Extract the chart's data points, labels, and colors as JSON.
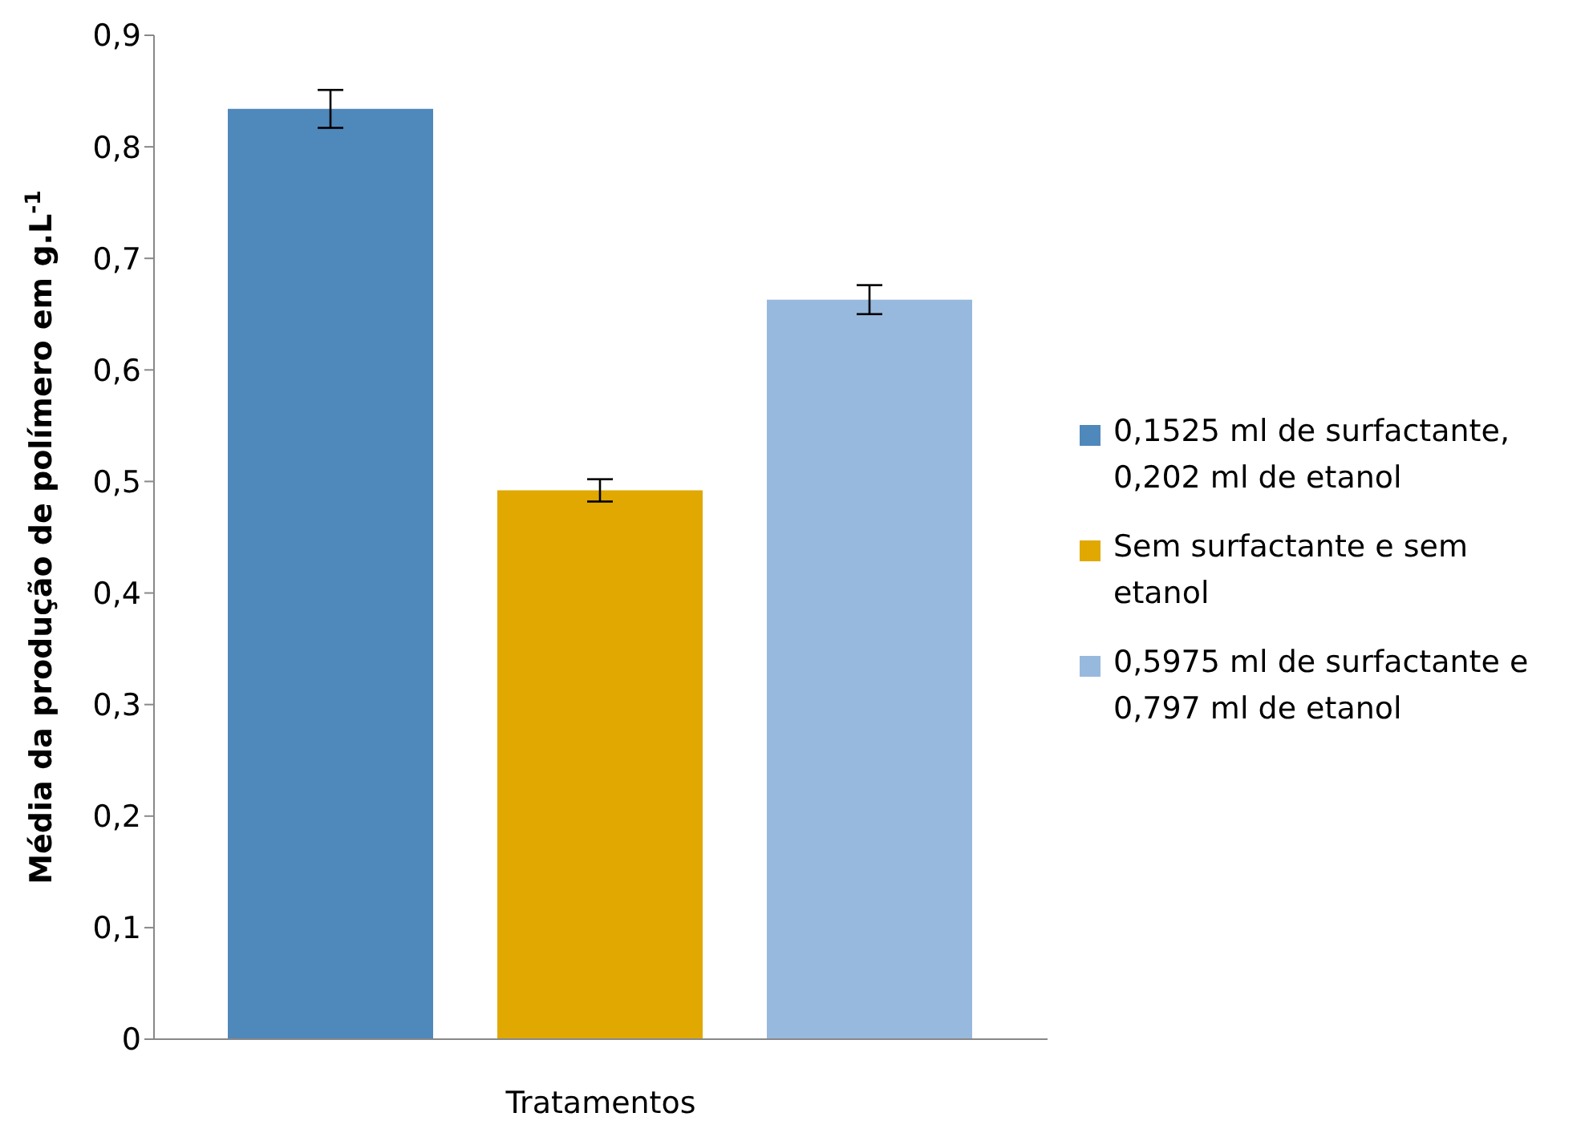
{
  "chart_data": {
    "type": "bar",
    "xlabel": "Tratamentos",
    "ylabel": "Média da produção de polímero em g.L$^{-1}$",
    "categories": [
      null
    ],
    "series": [
      {
        "name": "0,1525 ml de surfactante, 0,202 ml de etanol",
        "color": "#4f88bb",
        "values": [
          0.834
        ],
        "errors": [
          0.017
        ]
      },
      {
        "name": "Sem surfactante e sem etanol",
        "color": "#e0a800",
        "values": [
          0.492
        ],
        "errors": [
          0.01
        ]
      },
      {
        "name": "0,5975 ml de surfactante e 0,797 ml de etanol",
        "color": "#98b9de",
        "values": [
          0.663
        ],
        "errors": [
          0.013
        ]
      }
    ],
    "ylim": [
      0,
      0.9
    ],
    "yticks": [
      0,
      {
        "value": 0.1,
        "label": "0,1"
      },
      {
        "value": 0.2,
        "label": "0,2"
      },
      {
        "value": 0.3,
        "label": "0,3"
      },
      {
        "value": 0.4,
        "label": "0,4"
      },
      {
        "value": 0.5,
        "label": "0,5"
      },
      {
        "value": 0.6,
        "label": "0,6"
      },
      {
        "value": 0.7,
        "label": "0,7"
      },
      {
        "value": 0.8,
        "label": "0,8"
      },
      {
        "value": 0.9,
        "label": "0,9"
      }
    ],
    "grid": false,
    "legend": "right"
  }
}
